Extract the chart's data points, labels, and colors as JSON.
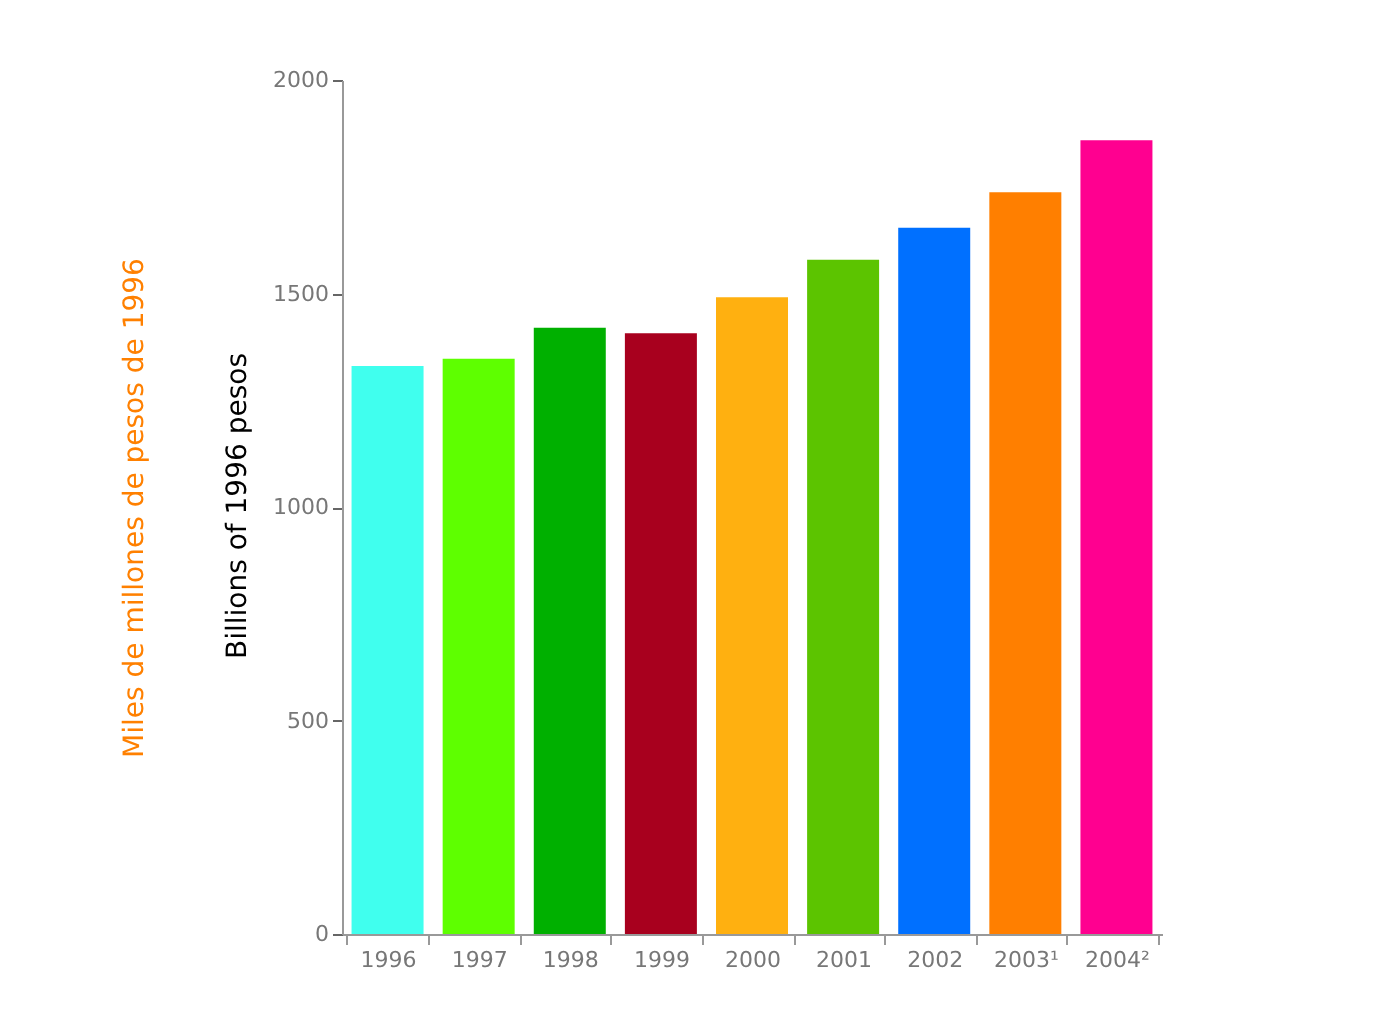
{
  "chart_data": {
    "type": "bar",
    "ylabel": "Miles de millones de pesos de 1996",
    "annotations": [
      "Billions of 1996 pesos"
    ],
    "categories": [
      "1996",
      "1997",
      "1998",
      "1999",
      "2000",
      "2001",
      "2002",
      "2003¹",
      "2004²"
    ],
    "values": [
      1330,
      1347,
      1420,
      1407,
      1491,
      1579,
      1654,
      1737,
      1859
    ],
    "colors": [
      "#40ffee",
      "#5eff00",
      "#00b000",
      "#a8001e",
      "#ffb010",
      "#5cc400",
      "#0070ff",
      "#ff7f00",
      "#ff0090"
    ],
    "ylim": [
      0,
      2000
    ],
    "yticks": [
      0,
      500,
      1000,
      1500,
      2000
    ],
    "grid": false
  }
}
